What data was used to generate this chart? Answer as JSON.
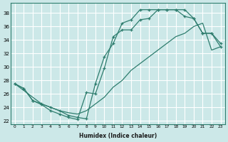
{
  "xlabel": "Humidex (Indice chaleur)",
  "bg_color": "#cce8e8",
  "grid_color": "#ffffff",
  "line_color": "#2e7d6e",
  "xlim": [
    -0.5,
    23.5
  ],
  "ylim": [
    21.5,
    39.5
  ],
  "xticks": [
    0,
    1,
    2,
    3,
    4,
    5,
    6,
    7,
    8,
    9,
    10,
    11,
    12,
    13,
    14,
    15,
    16,
    17,
    18,
    19,
    20,
    21,
    22,
    23
  ],
  "yticks": [
    22,
    24,
    26,
    28,
    30,
    32,
    34,
    36,
    38
  ],
  "line1_x": [
    0,
    1,
    2,
    3,
    4,
    5,
    6,
    7,
    8,
    9,
    10,
    11,
    12,
    13,
    14,
    15,
    16,
    17,
    18,
    19,
    20,
    21,
    22,
    23
  ],
  "line1_y": [
    27.5,
    26.8,
    25.0,
    24.4,
    23.5,
    23.0,
    22.5,
    22.2,
    26.2,
    26.0,
    29.8,
    34.5,
    35.5,
    35.5,
    37.0,
    37.2,
    38.5,
    38.5,
    38.5,
    38.5,
    37.2,
    35.0,
    35.0,
    33.0
  ],
  "line2_x": [
    0,
    1,
    2,
    3,
    4,
    5,
    6,
    7,
    8,
    9,
    10,
    11,
    12,
    13,
    14,
    15,
    16,
    17,
    18,
    19,
    20,
    21,
    22,
    23
  ],
  "line2_y": [
    27.5,
    26.5,
    25.5,
    24.5,
    24.0,
    23.5,
    23.2,
    23.0,
    23.5,
    24.5,
    25.5,
    27.0,
    28.0,
    29.5,
    30.5,
    31.5,
    32.5,
    33.5,
    34.5,
    35.0,
    36.0,
    36.5,
    32.5,
    33.0
  ],
  "line3_x": [
    0,
    1,
    2,
    3,
    4,
    5,
    6,
    7,
    8,
    9,
    10,
    11,
    12,
    13,
    14,
    15,
    16,
    17,
    18,
    19,
    20,
    21,
    22,
    23
  ],
  "line3_y": [
    27.5,
    26.8,
    25.0,
    24.5,
    24.0,
    23.5,
    22.8,
    22.5,
    22.3,
    27.5,
    31.5,
    33.5,
    36.5,
    37.0,
    38.5,
    38.5,
    38.5,
    38.5,
    38.5,
    37.5,
    37.2,
    35.0,
    35.0,
    33.5
  ]
}
